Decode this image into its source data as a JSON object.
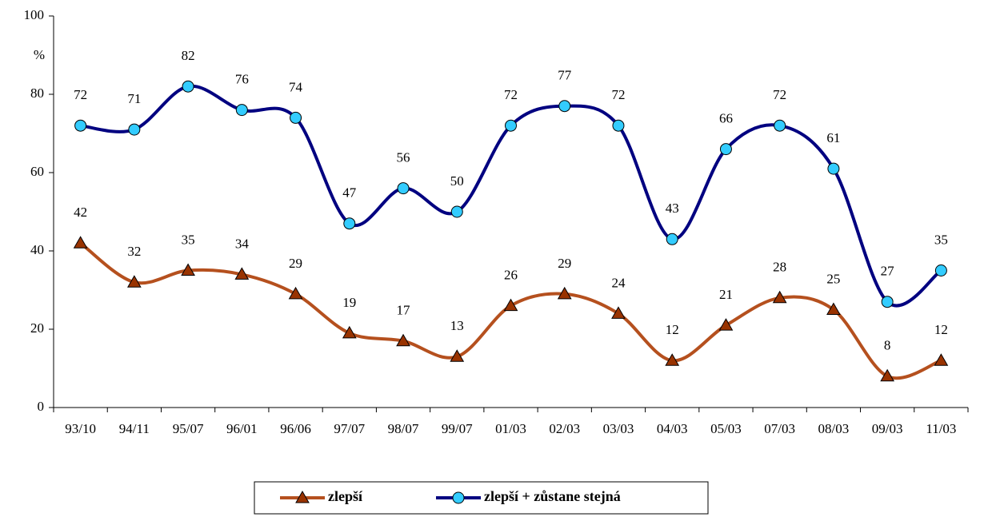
{
  "chart_data": {
    "type": "line",
    "y_label": "%",
    "categories": [
      "93/10",
      "94/11",
      "95/07",
      "96/01",
      "96/06",
      "97/07",
      "98/07",
      "99/07",
      "01/03",
      "02/03",
      "03/03",
      "04/03",
      "05/03",
      "07/03",
      "08/03",
      "09/03",
      "11/03"
    ],
    "series": [
      {
        "name": "zlepší",
        "color": "#993300",
        "line_color": "#b5501e",
        "marker": "triangle",
        "values": [
          42,
          32,
          35,
          34,
          29,
          19,
          17,
          13,
          26,
          29,
          24,
          12,
          21,
          28,
          25,
          8,
          12
        ]
      },
      {
        "name": "zlepší + zůstane stejná",
        "color": "#33ccff",
        "line_color": "#000080",
        "marker": "circle",
        "values": [
          72,
          71,
          82,
          76,
          74,
          47,
          56,
          50,
          72,
          77,
          72,
          43,
          66,
          72,
          61,
          27,
          35
        ]
      }
    ],
    "ylim": [
      0,
      100
    ],
    "yticks": [
      0,
      20,
      40,
      60,
      80,
      100
    ],
    "grid": false,
    "smooth": true,
    "legend": "bottom"
  }
}
